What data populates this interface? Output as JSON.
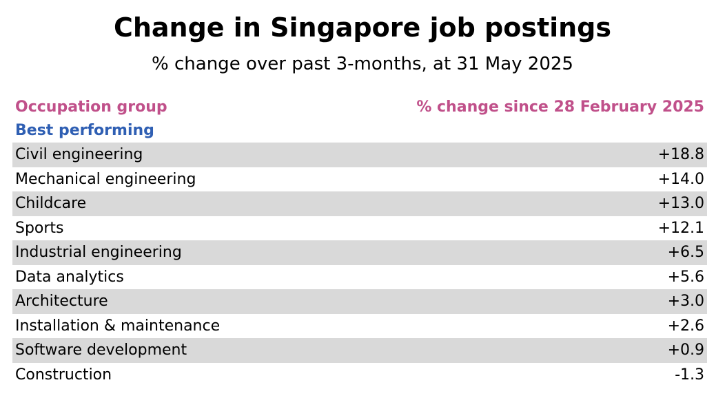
{
  "title": "Change in Singapore job postings",
  "subtitle": "% change over past 3-months, at 31 May 2025",
  "colors": {
    "header": "#c0508a",
    "section": "#2f5fb3",
    "row_shade": "#d9d9d9"
  },
  "chart_data": {
    "type": "table",
    "columns": [
      "Occupation group",
      "% change since 28 February 2025"
    ],
    "section_label": "Best performing",
    "rows": [
      {
        "group": "Civil engineering",
        "change": "+18.8"
      },
      {
        "group": "Mechanical engineering",
        "change": "+14.0"
      },
      {
        "group": "Childcare",
        "change": "+13.0"
      },
      {
        "group": "Sports",
        "change": "+12.1"
      },
      {
        "group": "Industrial engineering",
        "change": "+6.5"
      },
      {
        "group": "Data analytics",
        "change": "+5.6"
      },
      {
        "group": "Architecture",
        "change": "+3.0"
      },
      {
        "group": "Installation & maintenance",
        "change": "+2.6"
      },
      {
        "group": "Software development",
        "change": "+0.9"
      },
      {
        "group": "Construction",
        "change": "-1.3"
      }
    ]
  }
}
